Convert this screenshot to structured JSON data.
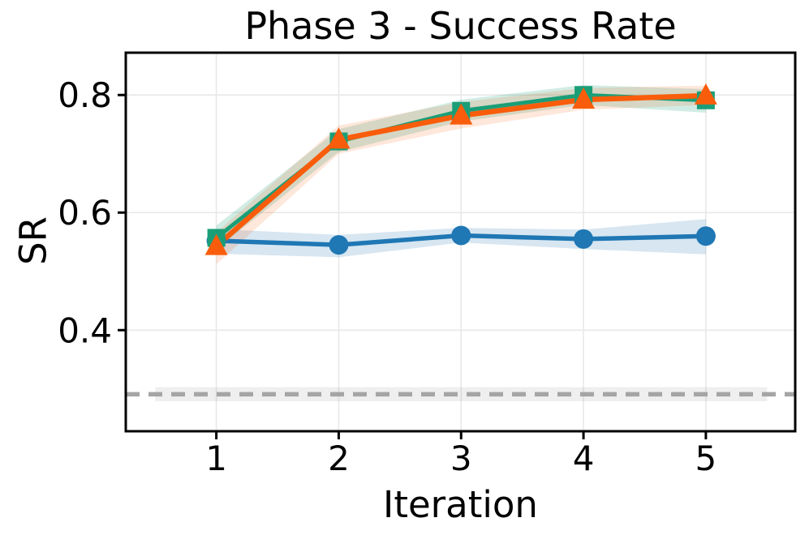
{
  "chart_data": {
    "type": "line",
    "title": "Phase 3 - Success Rate",
    "xlabel": "Iteration",
    "ylabel": "SR",
    "x": [
      1,
      2,
      3,
      4,
      5
    ],
    "xtick_labels": [
      "1",
      "2",
      "3",
      "4",
      "5"
    ],
    "ytick_values": [
      0.4,
      0.6,
      0.8
    ],
    "ytick_labels": [
      "0.4",
      "0.6",
      "0.8"
    ],
    "xlim": [
      0.26,
      5.73
    ],
    "ylim": [
      0.228,
      0.872
    ],
    "grid": true,
    "legend": "none",
    "colors": {
      "background": "#ffffff",
      "frame": "#000000",
      "gridline": "#e8e8e8",
      "text": "#000000"
    },
    "series": [
      {
        "name": "circle-series",
        "marker": "circle",
        "color": "#1f77b4",
        "line_width": 5.5,
        "band_opacity": 0.18,
        "values": [
          0.552,
          0.545,
          0.561,
          0.555,
          0.56
        ],
        "band_lower": [
          0.53,
          0.524,
          0.549,
          0.538,
          0.529
        ],
        "band_upper": [
          0.572,
          0.562,
          0.574,
          0.571,
          0.589
        ]
      },
      {
        "name": "square-series",
        "marker": "square",
        "color": "#1b9e77",
        "line_width": 5,
        "band_opacity": 0.2,
        "values": [
          0.557,
          0.721,
          0.773,
          0.8,
          0.791
        ],
        "band_lower": [
          0.538,
          0.703,
          0.755,
          0.783,
          0.77
        ],
        "band_upper": [
          0.578,
          0.742,
          0.792,
          0.817,
          0.81
        ]
      },
      {
        "name": "triangle-series",
        "marker": "triangle",
        "color": "#f95d0b",
        "line_width": 6.5,
        "band_opacity": 0.15,
        "values": [
          0.543,
          0.724,
          0.765,
          0.792,
          0.799
        ],
        "band_lower": [
          0.512,
          0.7,
          0.743,
          0.775,
          0.783
        ],
        "band_upper": [
          0.566,
          0.748,
          0.788,
          0.812,
          0.816
        ]
      }
    ],
    "baseline": {
      "name": "dashed-baseline",
      "y": 0.291,
      "color": "#a5a5a5",
      "line_width": 5.5,
      "dash": [
        17,
        11
      ],
      "band": {
        "x_start": 0.5,
        "x_end": 5.5,
        "lower": 0.279,
        "upper": 0.303,
        "color": "#9c9c9c",
        "opacity": 0.16
      }
    }
  }
}
